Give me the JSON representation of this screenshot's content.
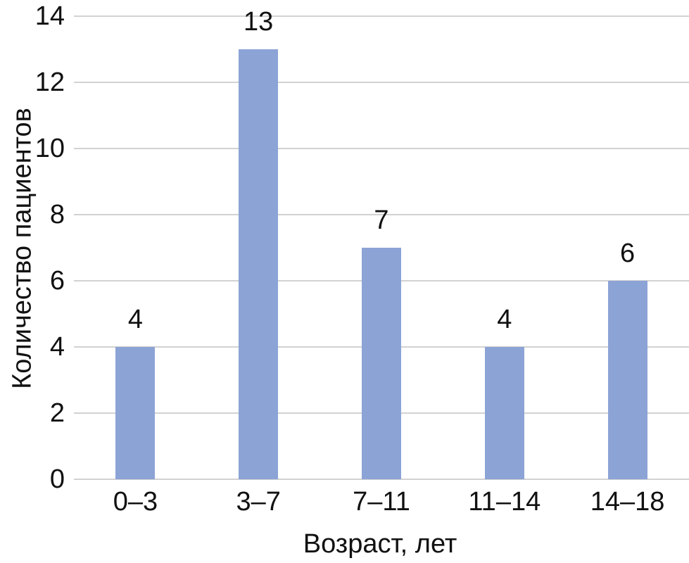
{
  "chart_data": {
    "type": "bar",
    "title": "",
    "categories": [
      "0–3",
      "3–7",
      "7–11",
      "11–14",
      "14–18"
    ],
    "values": [
      4,
      13,
      7,
      4,
      6
    ],
    "value_labels": [
      "4",
      "13",
      "7",
      "4",
      "6"
    ],
    "xlabel": "Возраст, лет",
    "ylabel": "Количество пациентов",
    "yticks": [
      0,
      2,
      4,
      6,
      8,
      10,
      12,
      14
    ],
    "ytick_labels": [
      "0",
      "2",
      "4",
      "6",
      "8",
      "10",
      "12",
      "14"
    ],
    "ylim": [
      0,
      14
    ],
    "grid": "horizontal",
    "legend": "none",
    "bar_color": "#8CA3D6",
    "gridline_color": "#D2D2D2",
    "axis_line_color": "#D2D2D2",
    "text_color": "#111111",
    "background_color": "#FFFFFF"
  }
}
